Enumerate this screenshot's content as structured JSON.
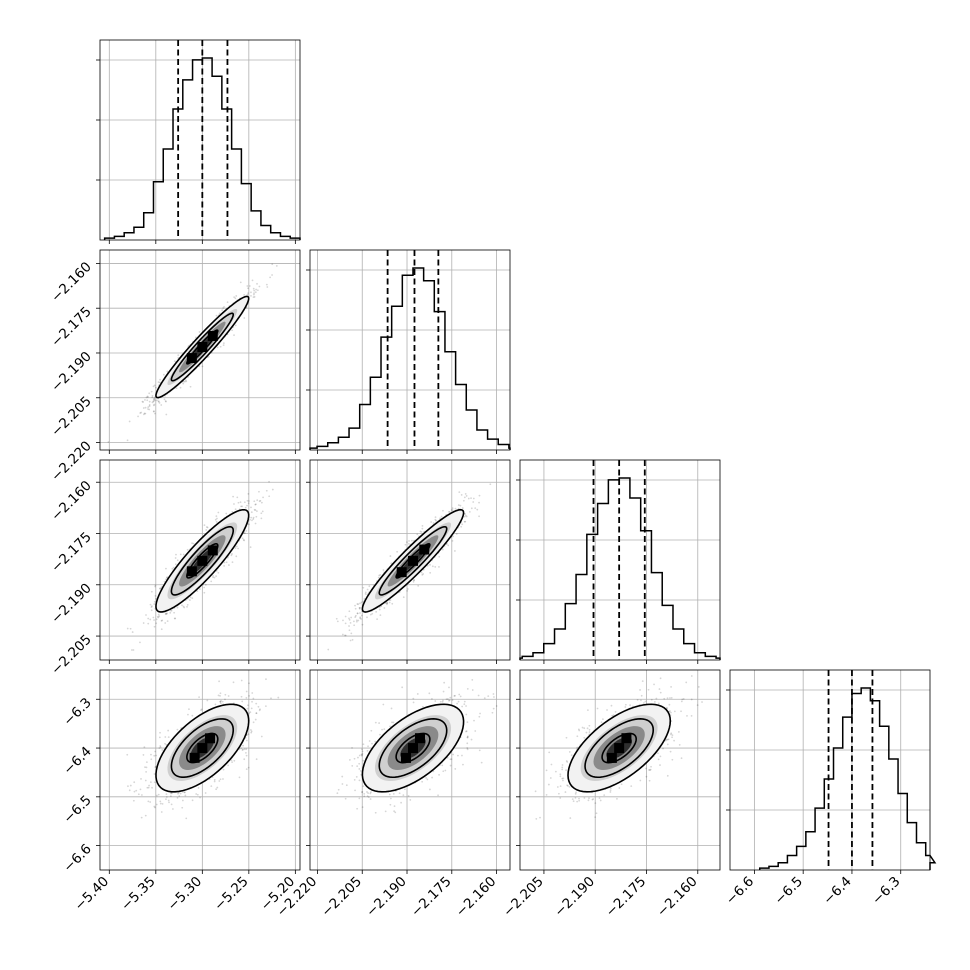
{
  "chart_data": {
    "type": "corner",
    "parameters": [
      {
        "mean": -5.3,
        "sigma": 0.025,
        "q16": -5.326,
        "q50": -5.3,
        "q84": -5.273,
        "range": [
          -5.41,
          -5.195
        ],
        "ticks": [
          -5.4,
          -5.35,
          -5.3,
          -5.25,
          -5.2
        ],
        "tick_labels": [
          "−5.40",
          "−5.35",
          "−5.30",
          "−5.25",
          "−5.20"
        ]
      },
      {
        "mean": -2.188,
        "sigma": 0.0085,
        "q16": -2.1965,
        "q50": -2.1875,
        "q84": -2.1795,
        "range": [
          -2.2225,
          -2.1555
        ],
        "ticks": [
          -2.22,
          -2.205,
          -2.19,
          -2.175,
          -2.16
        ],
        "tick_labels": [
          "−2.220",
          "−2.205",
          "−2.190",
          "−2.175",
          "−2.160"
        ]
      },
      {
        "mean": -2.183,
        "sigma": 0.0075,
        "q16": -2.1905,
        "q50": -2.183,
        "q84": -2.1755,
        "range": [
          -2.212,
          -2.1535
        ],
        "ticks": [
          -2.205,
          -2.19,
          -2.175,
          -2.16
        ],
        "tick_labels": [
          "−2.205",
          "−2.190",
          "−2.175",
          "−2.160"
        ]
      },
      {
        "mean": -6.4,
        "sigma": 0.045,
        "q16": -6.448,
        "q50": -6.4,
        "q84": -6.358,
        "range": [
          -6.65,
          -6.24
        ],
        "ticks": [
          -6.6,
          -6.5,
          -6.4,
          -6.3
        ],
        "tick_labels": [
          "−6.6",
          "−6.5",
          "−6.4",
          "−6.3"
        ]
      }
    ],
    "correlations": [
      [
        1,
        0.96,
        0.89,
        0.62
      ],
      [
        0.96,
        1,
        0.94,
        0.6
      ],
      [
        0.89,
        0.94,
        1,
        0.62
      ],
      [
        0.62,
        0.6,
        0.62,
        1
      ]
    ],
    "histograms": [
      [
        0.01,
        0.02,
        0.04,
        0.07,
        0.15,
        0.32,
        0.5,
        0.72,
        0.88,
        0.99,
        1.0,
        0.9,
        0.72,
        0.5,
        0.31,
        0.16,
        0.08,
        0.04,
        0.02,
        0.01
      ],
      [
        0.01,
        0.02,
        0.04,
        0.07,
        0.12,
        0.25,
        0.4,
        0.62,
        0.79,
        0.96,
        1.0,
        0.93,
        0.76,
        0.54,
        0.36,
        0.22,
        0.11,
        0.06,
        0.03,
        0.01
      ],
      [
        0.01,
        0.02,
        0.04,
        0.09,
        0.17,
        0.31,
        0.47,
        0.69,
        0.86,
        0.99,
        1.0,
        0.89,
        0.71,
        0.48,
        0.3,
        0.17,
        0.09,
        0.04,
        0.02,
        0.01
      ],
      [
        0.01,
        0.02,
        0.04,
        0.08,
        0.13,
        0.21,
        0.34,
        0.5,
        0.67,
        0.84,
        0.97,
        1.0,
        0.93,
        0.79,
        0.61,
        0.42,
        0.26,
        0.15,
        0.08,
        0.04
      ]
    ],
    "grid": true,
    "contour_levels": 3,
    "quantiles": [
      0.16,
      0.5,
      0.84
    ]
  }
}
